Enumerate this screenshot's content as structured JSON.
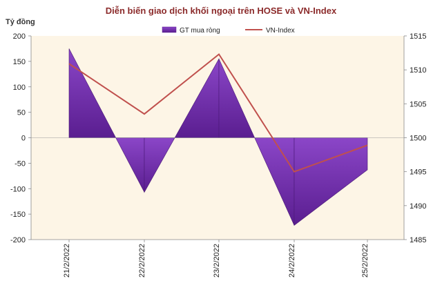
{
  "chart_data": {
    "type": "area",
    "title": "Diễn biến giao dịch khối ngoại trên HOSE và VN-Index",
    "ylabel": "Tỷ đồng",
    "categories": [
      "21/2/2022",
      "22/2/2022",
      "23/2/2022",
      "24/2/2022",
      "25/2/2022"
    ],
    "series": [
      {
        "name": "GT mua ròng",
        "kind": "area",
        "axis": "left",
        "color": "#7030A0",
        "values": [
          175,
          -107,
          155,
          -172,
          -63
        ]
      },
      {
        "name": "VN-Index",
        "kind": "line",
        "axis": "right",
        "color": "#C0504D",
        "values": [
          1510.9,
          1503.5,
          1512.3,
          1495,
          1498.9
        ]
      }
    ],
    "y_left": {
      "min": -200,
      "max": 200,
      "step": 50,
      "ticks": [
        "200",
        "150",
        "100",
        "50",
        "0",
        "-50",
        "-100",
        "-150",
        "-200"
      ]
    },
    "y_right": {
      "min": 1485,
      "max": 1515,
      "step": 5,
      "ticks": [
        "1515",
        "1510",
        "1505",
        "1500",
        "1495",
        "1490",
        "1485"
      ]
    },
    "plot_background": "#FDF5E6",
    "legend_position": "top",
    "grid": false
  }
}
